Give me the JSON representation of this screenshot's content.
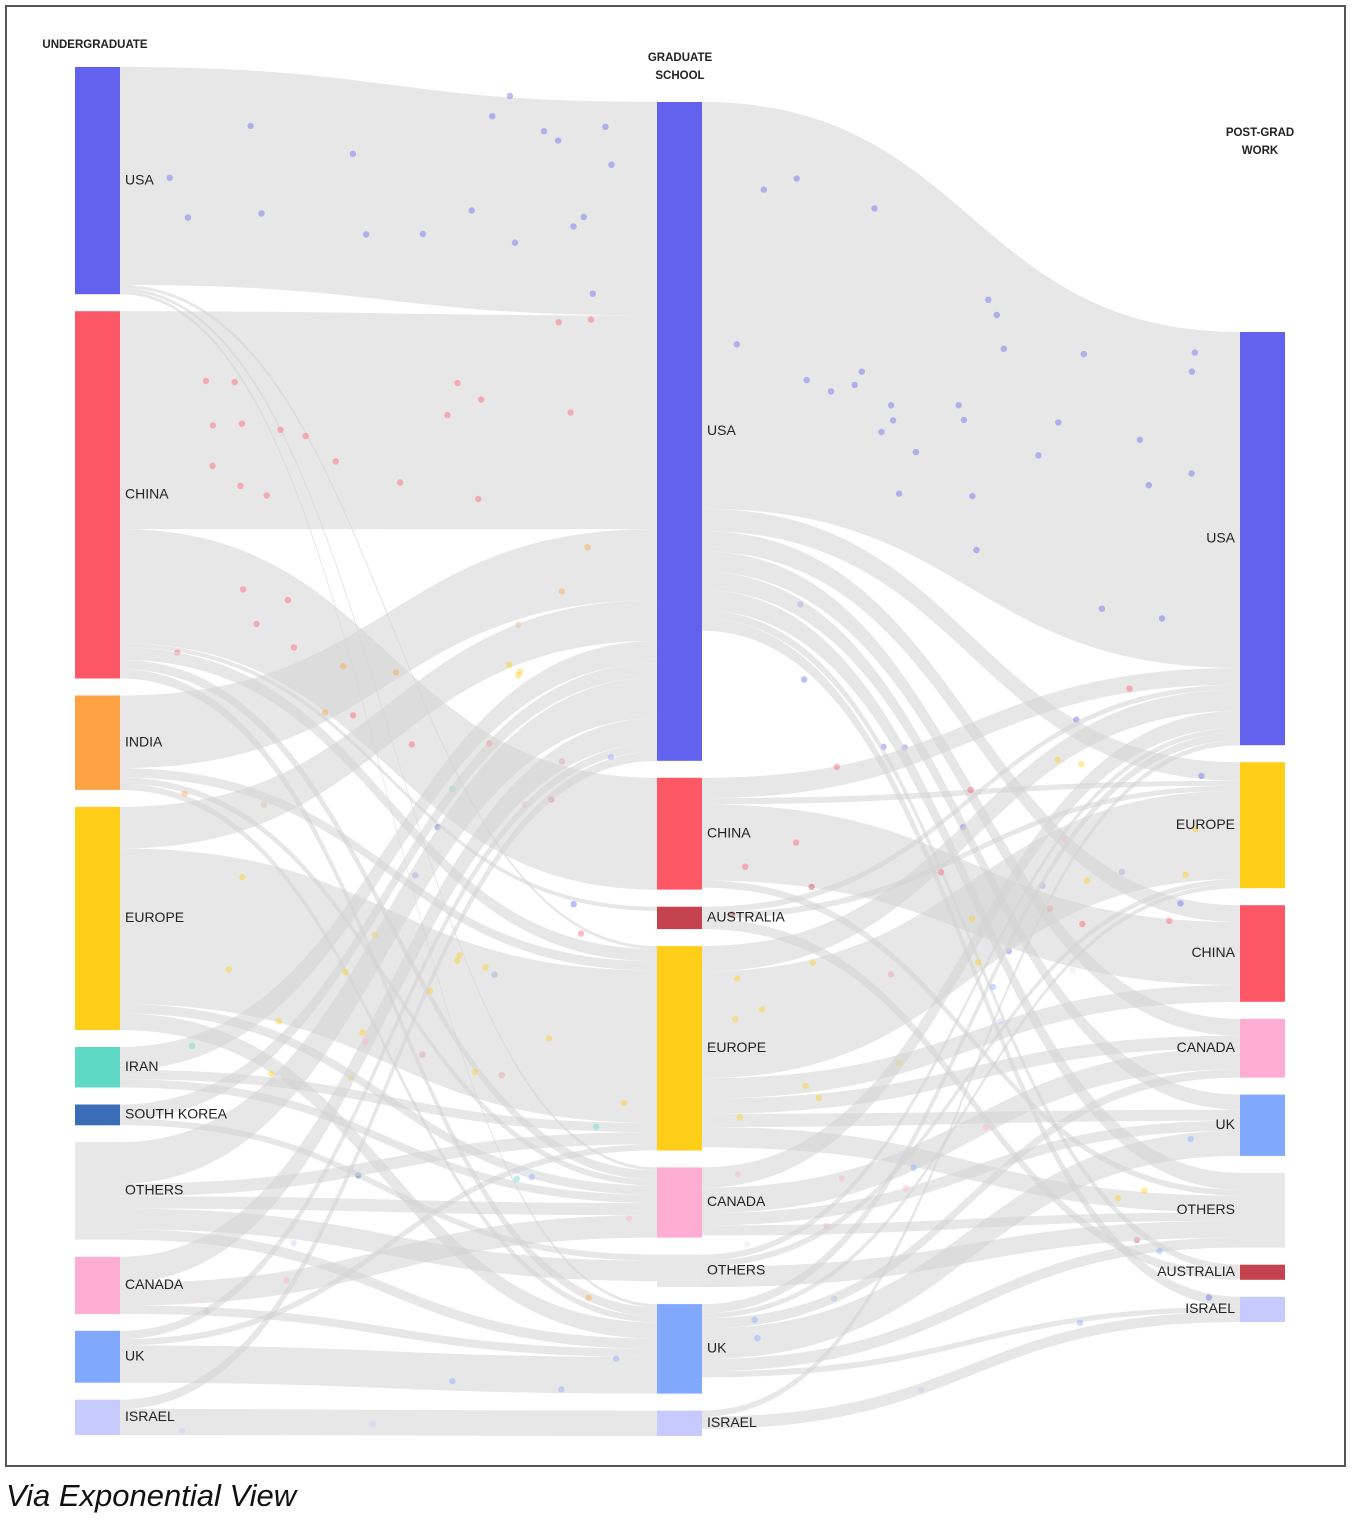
{
  "credit": "Via Exponential View",
  "columns": {
    "undergrad": "UNDERGRADUATE",
    "grad": "GRADUATE\nSCHOOL",
    "work": "POST-GRAD\nWORK"
  },
  "colors": {
    "link": "#dedede",
    "USA": "#6262ee",
    "CHINA": "#fe5866",
    "INDIA": "#fea243",
    "EUROPE": "#fece19",
    "IRAN": "#5dd9c5",
    "SOUTH KOREA": "#3b6cb6",
    "OTHERS": "#e8e8e8",
    "CANADA": "#fdadd1",
    "UK": "#80a9fe",
    "ISRAEL": "#c6cafe",
    "AUSTRALIA": "#c4434e"
  },
  "nodes": {
    "undergrad": [
      {
        "id": "u_usa",
        "label": "USA",
        "color_key": "USA"
      },
      {
        "id": "u_china",
        "label": "CHINA",
        "color_key": "CHINA"
      },
      {
        "id": "u_india",
        "label": "INDIA",
        "color_key": "INDIA"
      },
      {
        "id": "u_europe",
        "label": "EUROPE",
        "color_key": "EUROPE"
      },
      {
        "id": "u_iran",
        "label": "IRAN",
        "color_key": "IRAN"
      },
      {
        "id": "u_skorea",
        "label": "SOUTH KOREA",
        "color_key": "SOUTH KOREA"
      },
      {
        "id": "u_others",
        "label": "OTHERS",
        "color_key": "OTHERS"
      },
      {
        "id": "u_canada",
        "label": "CANADA",
        "color_key": "CANADA"
      },
      {
        "id": "u_uk",
        "label": "UK",
        "color_key": "UK"
      },
      {
        "id": "u_israel",
        "label": "ISRAEL",
        "color_key": "ISRAEL"
      }
    ],
    "grad": [
      {
        "id": "g_usa",
        "label": "USA",
        "color_key": "USA"
      },
      {
        "id": "g_china",
        "label": "CHINA",
        "color_key": "CHINA"
      },
      {
        "id": "g_australia",
        "label": "AUSTRALIA",
        "color_key": "AUSTRALIA"
      },
      {
        "id": "g_europe",
        "label": "EUROPE",
        "color_key": "EUROPE"
      },
      {
        "id": "g_canada",
        "label": "CANADA",
        "color_key": "CANADA"
      },
      {
        "id": "g_others",
        "label": "OTHERS",
        "color_key": "OTHERS"
      },
      {
        "id": "g_uk",
        "label": "UK",
        "color_key": "UK"
      },
      {
        "id": "g_israel",
        "label": "ISRAEL",
        "color_key": "ISRAEL"
      }
    ],
    "work": [
      {
        "id": "w_usa",
        "label": "USA",
        "color_key": "USA"
      },
      {
        "id": "w_europe",
        "label": "EUROPE",
        "color_key": "EUROPE"
      },
      {
        "id": "w_china",
        "label": "CHINA",
        "color_key": "CHINA"
      },
      {
        "id": "w_canada",
        "label": "CANADA",
        "color_key": "CANADA"
      },
      {
        "id": "w_uk",
        "label": "UK",
        "color_key": "UK"
      },
      {
        "id": "w_others",
        "label": "OTHERS",
        "color_key": "OTHERS"
      },
      {
        "id": "w_australia",
        "label": "AUSTRALIA",
        "color_key": "AUSTRALIA"
      },
      {
        "id": "w_israel",
        "label": "ISRAEL",
        "color_key": "ISRAEL"
      }
    ]
  },
  "links": [
    {
      "source": "u_usa",
      "target": "g_usa",
      "value": 210
    },
    {
      "source": "u_usa",
      "target": "g_europe",
      "value": 3
    },
    {
      "source": "u_usa",
      "target": "g_canada",
      "value": 3
    },
    {
      "source": "u_usa",
      "target": "g_uk",
      "value": 3
    },
    {
      "source": "u_china",
      "target": "g_usa",
      "value": 210
    },
    {
      "source": "u_china",
      "target": "g_china",
      "value": 110
    },
    {
      "source": "u_china",
      "target": "g_australia",
      "value": 4
    },
    {
      "source": "u_china",
      "target": "g_europe",
      "value": 12
    },
    {
      "source": "u_china",
      "target": "g_canada",
      "value": 9
    },
    {
      "source": "u_china",
      "target": "g_uk",
      "value": 9
    },
    {
      "source": "u_india",
      "target": "g_usa",
      "value": 70
    },
    {
      "source": "u_india",
      "target": "g_europe",
      "value": 9
    },
    {
      "source": "u_india",
      "target": "g_canada",
      "value": 6
    },
    {
      "source": "u_india",
      "target": "g_uk",
      "value": 6
    },
    {
      "source": "u_europe",
      "target": "g_usa",
      "value": 40
    },
    {
      "source": "u_europe",
      "target": "g_europe",
      "value": 150
    },
    {
      "source": "u_europe",
      "target": "g_canada",
      "value": 9
    },
    {
      "source": "u_europe",
      "target": "g_uk",
      "value": 16
    },
    {
      "source": "u_iran",
      "target": "g_usa",
      "value": 22
    },
    {
      "source": "u_iran",
      "target": "g_europe",
      "value": 9
    },
    {
      "source": "u_iran",
      "target": "g_canada",
      "value": 8
    },
    {
      "source": "u_skorea",
      "target": "g_usa",
      "value": 14
    },
    {
      "source": "u_skorea",
      "target": "g_others",
      "value": 6
    },
    {
      "source": "u_others",
      "target": "g_usa",
      "value": 40
    },
    {
      "source": "u_others",
      "target": "g_europe",
      "value": 12
    },
    {
      "source": "u_others",
      "target": "g_canada",
      "value": 12
    },
    {
      "source": "u_others",
      "target": "g_others",
      "value": 20
    },
    {
      "source": "u_others",
      "target": "g_uk",
      "value": 10
    },
    {
      "source": "u_canada",
      "target": "g_usa",
      "value": 25
    },
    {
      "source": "u_canada",
      "target": "g_canada",
      "value": 22
    },
    {
      "source": "u_canada",
      "target": "g_uk",
      "value": 8
    },
    {
      "source": "u_uk",
      "target": "g_usa",
      "value": 8
    },
    {
      "source": "u_uk",
      "target": "g_europe",
      "value": 6
    },
    {
      "source": "u_uk",
      "target": "g_uk",
      "value": 36
    },
    {
      "source": "u_israel",
      "target": "g_israel",
      "value": 25
    },
    {
      "source": "u_israel",
      "target": "g_usa",
      "value": 9
    },
    {
      "source": "g_usa",
      "target": "w_usa",
      "value": 400
    },
    {
      "source": "g_usa",
      "target": "w_europe",
      "value": 22
    },
    {
      "source": "g_usa",
      "target": "w_china",
      "value": 20
    },
    {
      "source": "g_usa",
      "target": "w_canada",
      "value": 20
    },
    {
      "source": "g_usa",
      "target": "w_uk",
      "value": 18
    },
    {
      "source": "g_usa",
      "target": "w_others",
      "value": 20
    },
    {
      "source": "g_usa",
      "target": "w_australia",
      "value": 8
    },
    {
      "source": "g_usa",
      "target": "w_israel",
      "value": 12
    },
    {
      "source": "g_china",
      "target": "w_usa",
      "value": 20
    },
    {
      "source": "g_china",
      "target": "w_china",
      "value": 75
    },
    {
      "source": "g_china",
      "target": "w_europe",
      "value": 6
    },
    {
      "source": "g_china",
      "target": "w_others",
      "value": 7
    },
    {
      "source": "g_australia",
      "target": "w_usa",
      "value": 6
    },
    {
      "source": "g_australia",
      "target": "w_europe",
      "value": 6
    },
    {
      "source": "g_australia",
      "target": "w_australia",
      "value": 10
    },
    {
      "source": "g_europe",
      "target": "w_usa",
      "value": 25
    },
    {
      "source": "g_europe",
      "target": "w_europe",
      "value": 105
    },
    {
      "source": "g_europe",
      "target": "w_china",
      "value": 20
    },
    {
      "source": "g_europe",
      "target": "w_canada",
      "value": 15
    },
    {
      "source": "g_europe",
      "target": "w_uk",
      "value": 13
    },
    {
      "source": "g_europe",
      "target": "w_others",
      "value": 20
    },
    {
      "source": "g_canada",
      "target": "w_usa",
      "value": 20
    },
    {
      "source": "g_canada",
      "target": "w_canada",
      "value": 25
    },
    {
      "source": "g_canada",
      "target": "w_uk",
      "value": 12
    },
    {
      "source": "g_canada",
      "target": "w_others",
      "value": 10
    },
    {
      "source": "g_others",
      "target": "w_usa",
      "value": 6
    },
    {
      "source": "g_others",
      "target": "w_others",
      "value": 20
    },
    {
      "source": "g_others",
      "target": "w_europe",
      "value": 6
    },
    {
      "source": "g_uk",
      "target": "w_usa",
      "value": 9
    },
    {
      "source": "g_uk",
      "target": "w_europe",
      "value": 5
    },
    {
      "source": "g_uk",
      "target": "w_uk",
      "value": 30
    },
    {
      "source": "g_uk",
      "target": "w_canada",
      "value": 10
    },
    {
      "source": "g_uk",
      "target": "w_others",
      "value": 12
    },
    {
      "source": "g_uk",
      "target": "w_israel",
      "value": 6
    },
    {
      "source": "g_israel",
      "target": "w_usa",
      "value": 6
    },
    {
      "source": "g_israel",
      "target": "w_israel",
      "value": 12
    }
  ]
}
